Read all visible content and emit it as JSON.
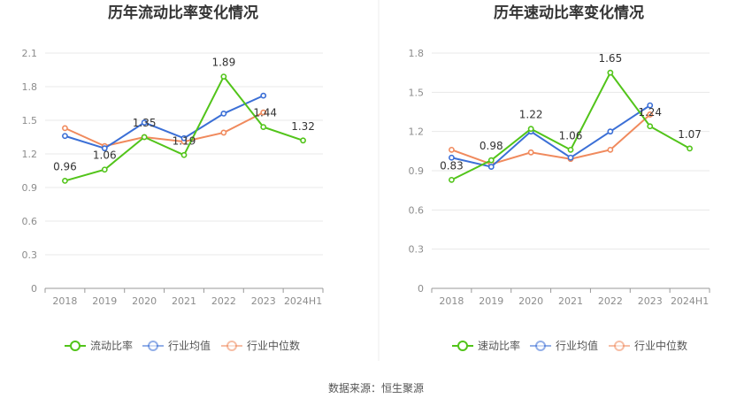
{
  "source_text": "数据来源：恒生聚源",
  "colors": {
    "green": "#52c41a",
    "blue": "#3b6fd6",
    "orange": "#f08a5d",
    "grid": "#e8e8e8",
    "axis": "#999999"
  },
  "chart_data": [
    {
      "type": "line",
      "title": "历年流动比率变化情况",
      "categories": [
        "2018",
        "2019",
        "2020",
        "2021",
        "2022",
        "2023",
        "2024H1"
      ],
      "yticks": [
        "0",
        "0.3",
        "0.6",
        "0.9",
        "1.2",
        "1.5",
        "1.8",
        "2.1"
      ],
      "ylim": [
        0,
        2.1
      ],
      "grid": true,
      "legend_position": "bottom",
      "series": [
        {
          "name": "流动比率",
          "color": "#52c41a",
          "values": [
            0.96,
            1.06,
            1.35,
            1.19,
            1.89,
            1.44,
            1.32
          ],
          "labels": [
            "0.96",
            "1.06",
            "1.35",
            "1.19",
            "1.89",
            "1.44",
            "1.32"
          ]
        },
        {
          "name": "行业均值",
          "color": "#3b6fd6",
          "values": [
            1.36,
            1.25,
            1.48,
            1.34,
            1.56,
            1.72,
            null
          ]
        },
        {
          "name": "行业中位数",
          "color": "#f08a5d",
          "values": [
            1.43,
            1.27,
            1.35,
            1.31,
            1.39,
            1.57,
            null
          ]
        }
      ]
    },
    {
      "type": "line",
      "title": "历年速动比率变化情况",
      "categories": [
        "2018",
        "2019",
        "2020",
        "2021",
        "2022",
        "2023",
        "2024H1"
      ],
      "yticks": [
        "0",
        "0.3",
        "0.6",
        "0.9",
        "1.2",
        "1.5",
        "1.8"
      ],
      "ylim": [
        0,
        1.8
      ],
      "grid": true,
      "legend_position": "bottom",
      "series": [
        {
          "name": "速动比率",
          "color": "#52c41a",
          "values": [
            0.83,
            0.98,
            1.22,
            1.06,
            1.65,
            1.24,
            1.07
          ],
          "labels": [
            "0.83",
            "0.98",
            "1.22",
            "1.06",
            "1.65",
            "1.24",
            "1.07"
          ]
        },
        {
          "name": "行业均值",
          "color": "#3b6fd6",
          "values": [
            1.0,
            0.93,
            1.2,
            1.0,
            1.2,
            1.4,
            null
          ]
        },
        {
          "name": "行业中位数",
          "color": "#f08a5d",
          "values": [
            1.06,
            0.95,
            1.04,
            0.99,
            1.06,
            1.33,
            null
          ]
        }
      ]
    }
  ]
}
